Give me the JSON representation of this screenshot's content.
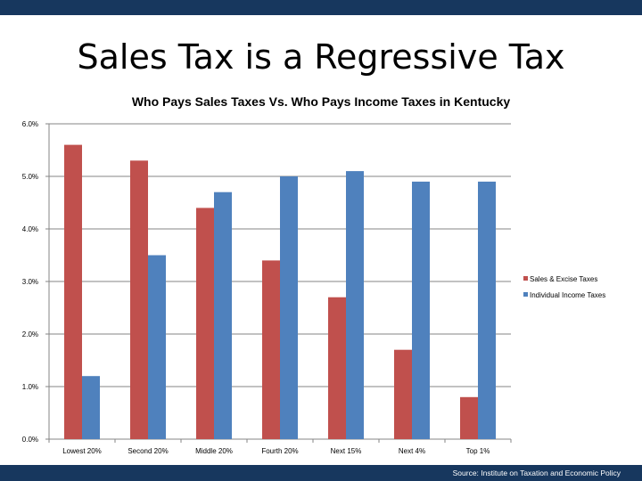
{
  "slide": {
    "title": "Sales Tax is a Regressive Tax",
    "source": "Source: Institute on Taxation and Economic Policy"
  },
  "chart_data": {
    "type": "bar",
    "title": "Who Pays Sales Taxes Vs. Who Pays Income Taxes in Kentucky",
    "xlabel": "",
    "ylabel": "",
    "categories": [
      "Lowest 20%",
      "Second 20%",
      "Middle 20%",
      "Fourth 20%",
      "Next 15%",
      "Next 4%",
      "Top 1%"
    ],
    "series": [
      {
        "name": "Sales & Excise Taxes",
        "color": "#c0504d",
        "values": [
          5.6,
          5.3,
          4.4,
          3.4,
          2.7,
          1.7,
          0.8
        ]
      },
      {
        "name": "Individual Income Taxes",
        "color": "#4f81bd",
        "values": [
          1.2,
          3.5,
          4.7,
          5.0,
          5.1,
          4.9,
          4.9
        ]
      }
    ],
    "ylim": [
      0,
      6
    ],
    "yticks": [
      "0.0%",
      "1.0%",
      "2.0%",
      "3.0%",
      "4.0%",
      "5.0%",
      "6.0%"
    ],
    "grid": true,
    "legend_position": "right"
  },
  "colors": {
    "banner": "#17375e",
    "gridline": "#868686"
  }
}
